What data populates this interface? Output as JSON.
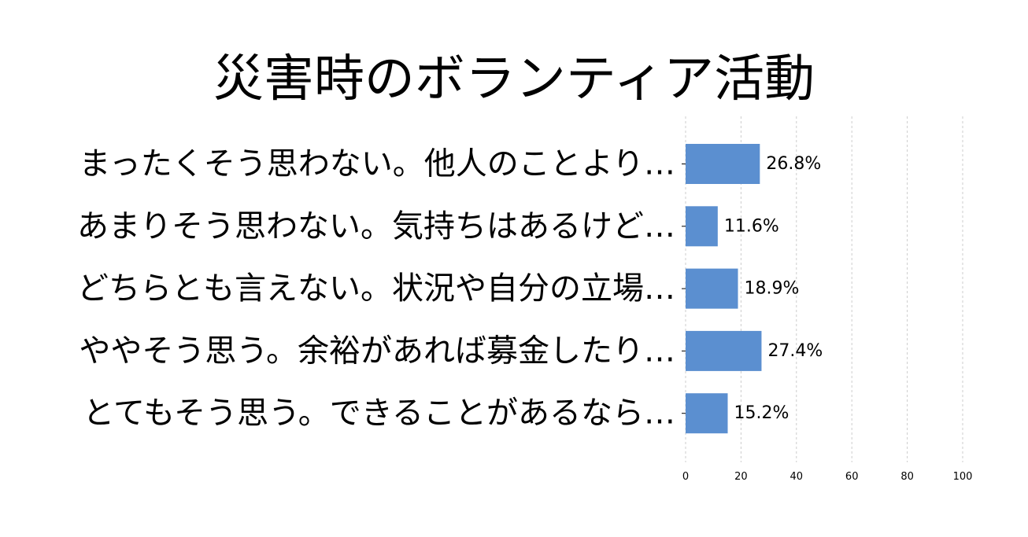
{
  "chart_data": {
    "type": "bar",
    "orientation": "horizontal",
    "title": "災害時のボランティア活動",
    "categories": [
      "まったくそう思わない。他人のことより…",
      "あまりそう思わない。気持ちはあるけど…",
      "どちらとも言えない。状況や自分の立場…",
      "ややそう思う。余裕があれば募金したり…",
      "とてもそう思う。できることがあるなら…"
    ],
    "values": [
      26.8,
      11.6,
      18.9,
      27.4,
      15.2
    ],
    "value_labels": [
      "26.8%",
      "11.6%",
      "18.9%",
      "27.4%",
      "15.2%"
    ],
    "xlim": [
      0,
      100
    ],
    "x_ticks": [
      0,
      20,
      40,
      60,
      80,
      100
    ],
    "x_tick_labels": [
      "0",
      "20",
      "40",
      "60",
      "80",
      "100"
    ],
    "grid": "vertical dashed",
    "bar_color": "#5b8fd0",
    "grid_color": "#cccccc"
  }
}
